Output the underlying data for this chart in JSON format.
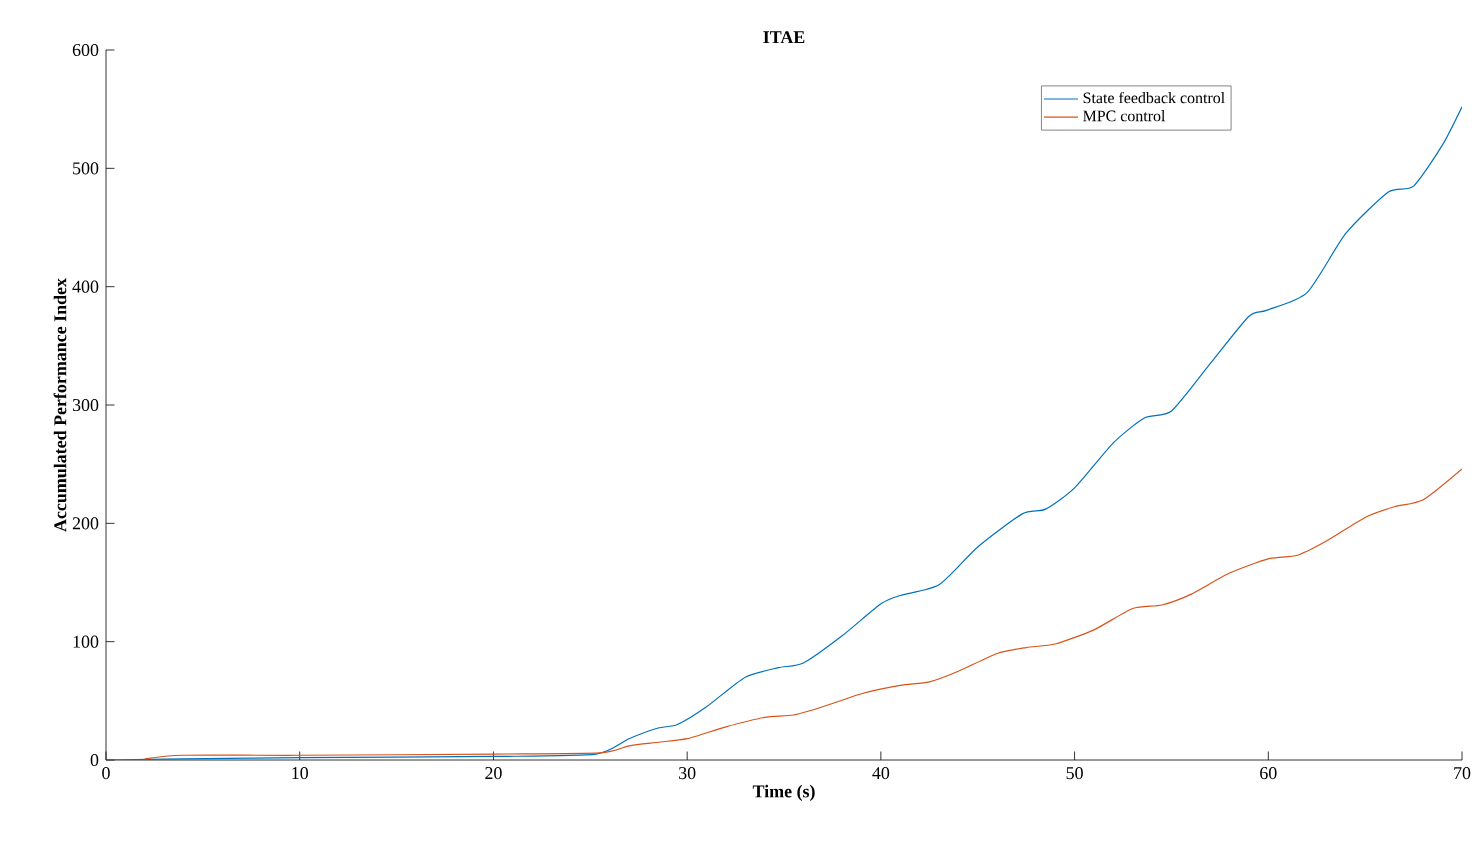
{
  "chart_data": {
    "type": "line",
    "title": "ITAE",
    "xlabel": "Time (s)",
    "ylabel": "Accumulated Performance Index",
    "xlim": [
      0,
      70
    ],
    "ylim": [
      0,
      600
    ],
    "xticks": [
      0,
      10,
      20,
      30,
      40,
      50,
      60,
      70
    ],
    "yticks": [
      0,
      100,
      200,
      300,
      400,
      500,
      600
    ],
    "grid": false,
    "legend": "top right",
    "line_style": "solid",
    "series": [
      {
        "name": "State feedback control",
        "color": "#0072bd",
        "x": [
          0,
          4,
          10,
          20,
          25.3,
          27,
          28.5,
          29.5,
          31,
          33,
          34.7,
          36,
          38,
          40,
          41,
          43,
          45,
          47.3,
          48.5,
          50,
          52,
          53.6,
          55,
          57,
          59,
          59.9,
          62,
          64,
          66.2,
          67.5,
          69,
          70
        ],
        "values": [
          0,
          1,
          2,
          3,
          5,
          18,
          27,
          30,
          45,
          70,
          78,
          82,
          105,
          132,
          139,
          148,
          180,
          208,
          212,
          230,
          268,
          289,
          295,
          335,
          375,
          380,
          395,
          445,
          480,
          485,
          520,
          552
        ]
      },
      {
        "name": "MPC control",
        "color": "#d95319",
        "x": [
          2,
          4,
          10,
          20,
          25.5,
          27,
          28.5,
          30,
          32,
          34,
          35.5,
          37,
          39,
          41,
          42.5,
          44,
          46,
          47.5,
          49,
          51,
          53,
          54.5,
          56,
          58,
          60,
          61.5,
          63,
          65,
          66.5,
          68,
          70
        ],
        "values": [
          1,
          4,
          4,
          5,
          6,
          12,
          15,
          18,
          28,
          36,
          38,
          45,
          56,
          63,
          66,
          75,
          90,
          95,
          98,
          110,
          128,
          131,
          140,
          158,
          170,
          173,
          185,
          205,
          214,
          220,
          246
        ]
      }
    ]
  }
}
